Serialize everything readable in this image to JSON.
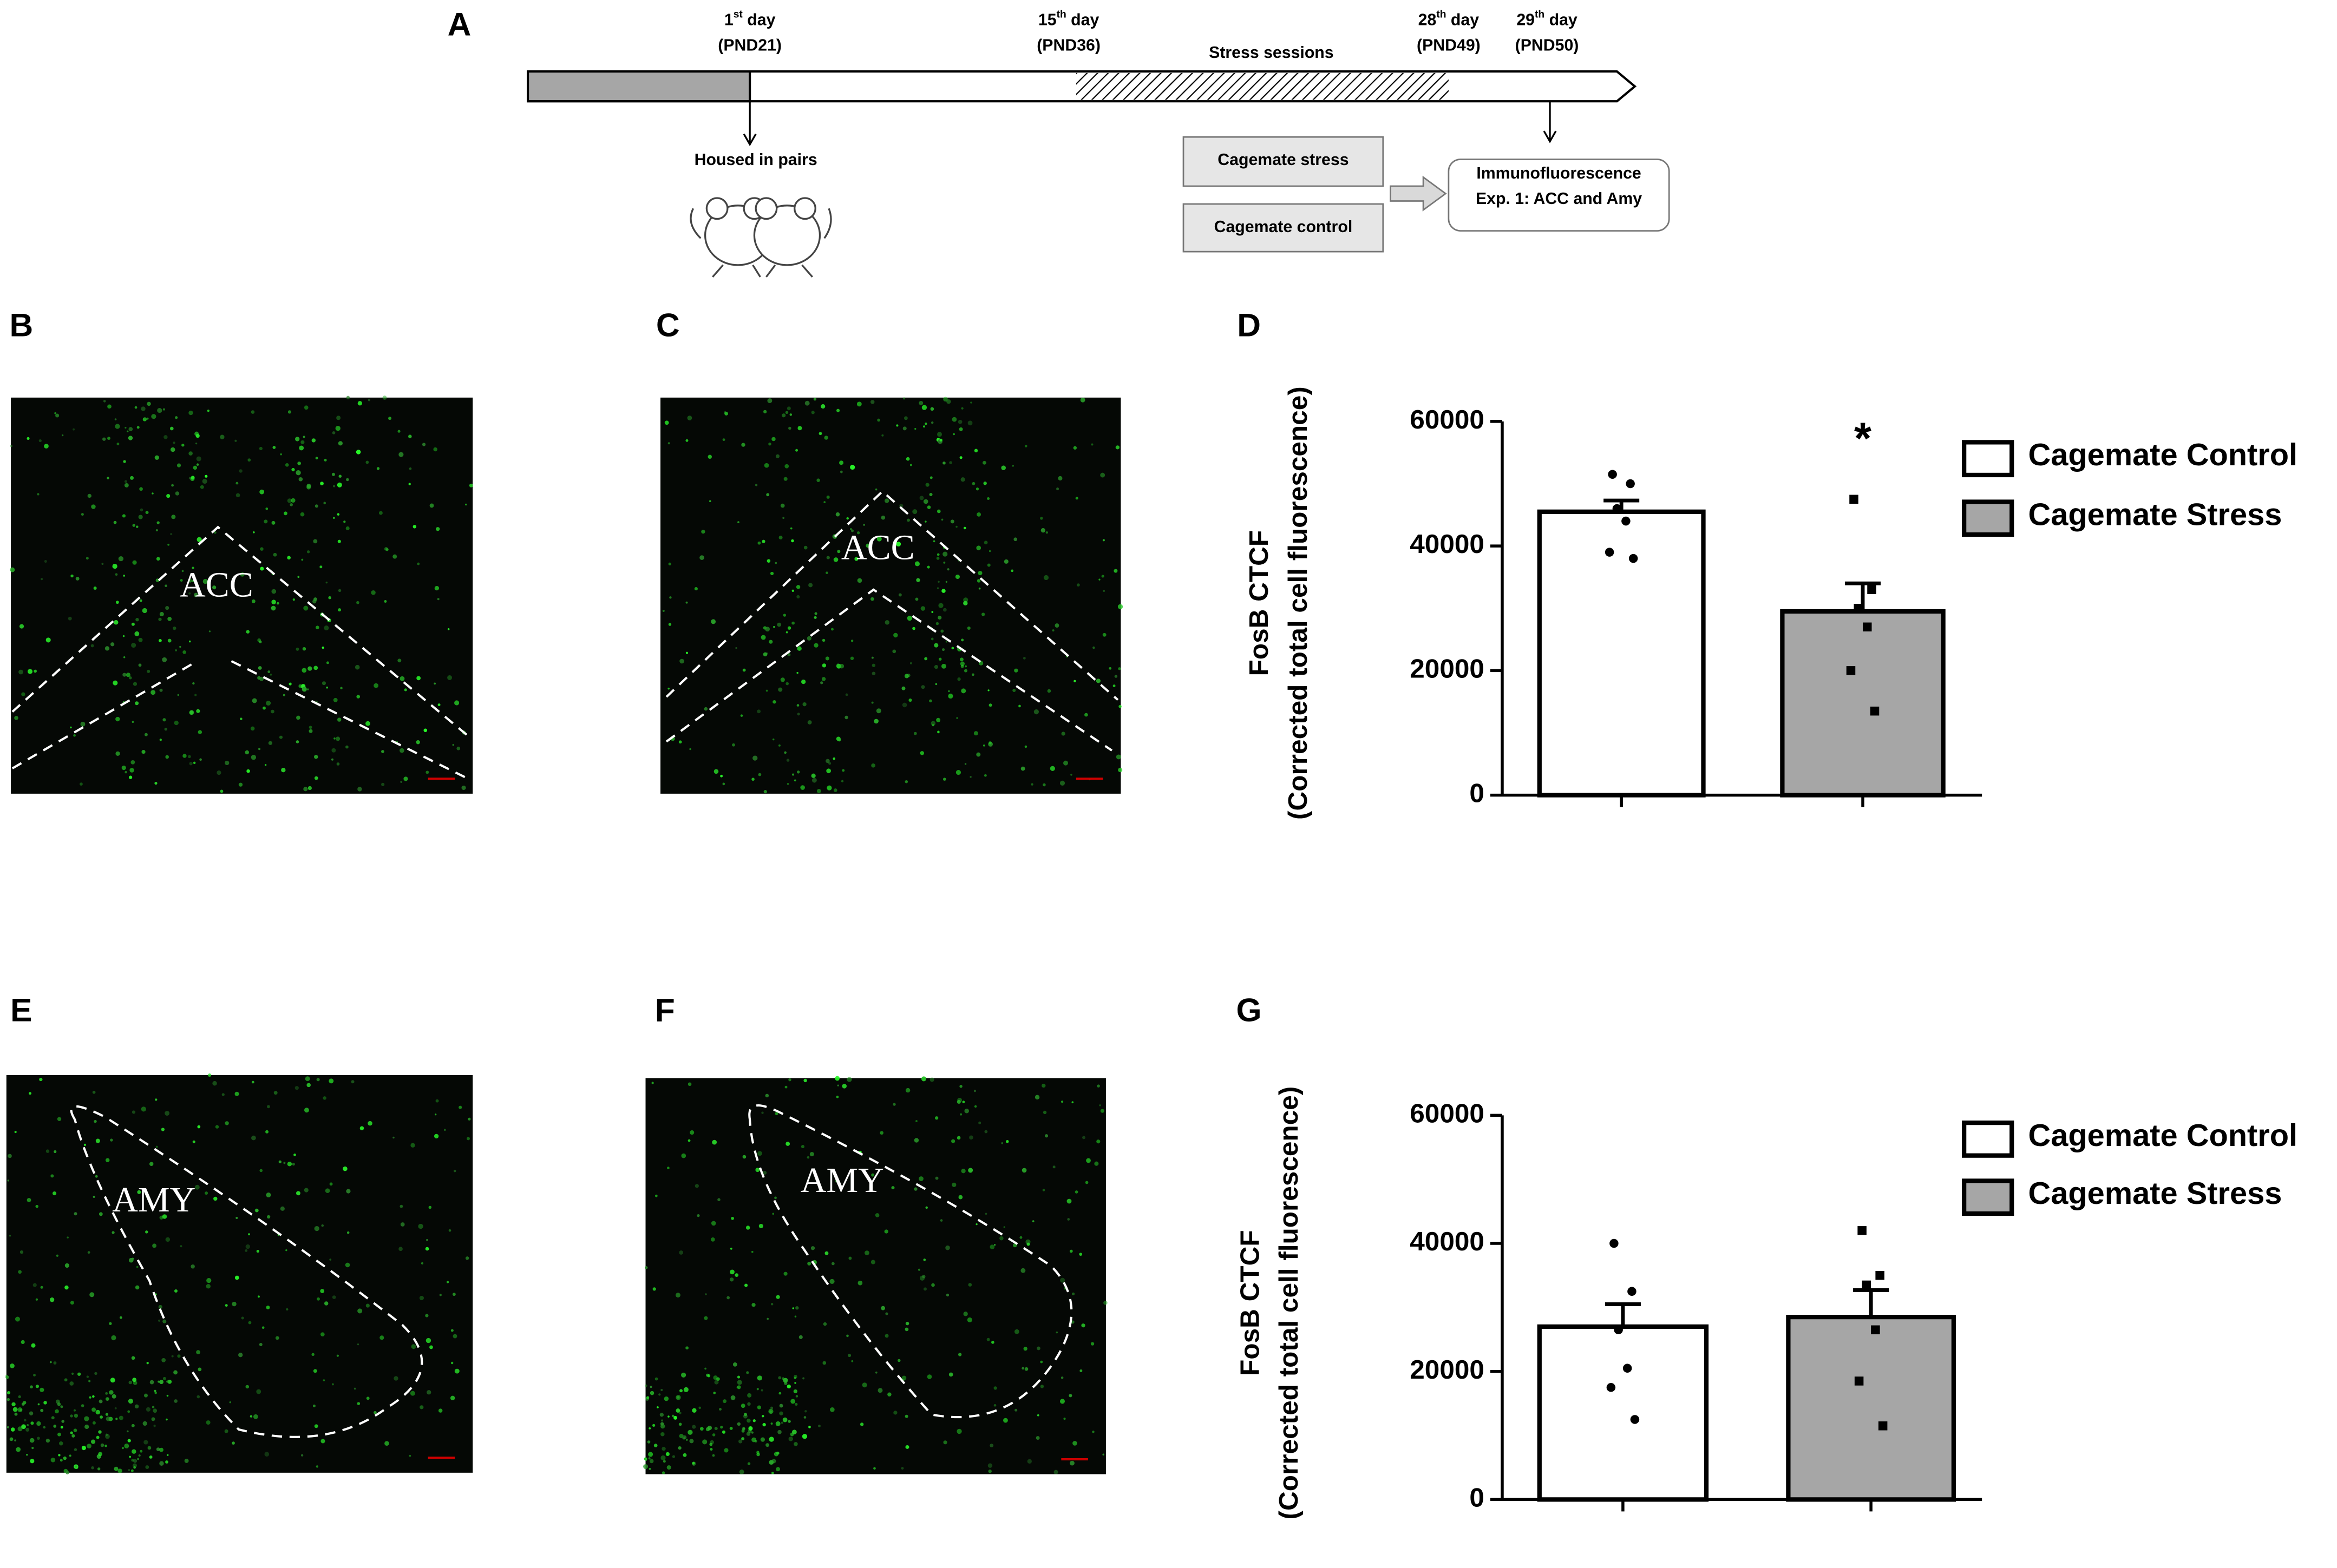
{
  "panel_labels": [
    "A",
    "B",
    "C",
    "D",
    "E",
    "F",
    "G"
  ],
  "timeline": {
    "days": [
      {
        "num": "1",
        "sup": "st",
        "word": " day",
        "pnd": "(PND21)"
      },
      {
        "num": "15",
        "sup": "th",
        "word": " day",
        "pnd": "(PND36)"
      },
      {
        "num": "28",
        "sup": "th",
        "word": " day",
        "pnd": "(PND49)"
      },
      {
        "num": "29",
        "sup": "th",
        "word": " day",
        "pnd": "(PND50)"
      }
    ],
    "stress_sessions": "Stress sessions",
    "housed": "Housed in pairs",
    "groups": [
      "Cagemate stress",
      "Cagemate control"
    ],
    "outcome": [
      "Immunofluorescence",
      "Exp. 1:  ACC and Amy"
    ]
  },
  "images": [
    "ACC",
    "ACC",
    "AMY",
    "AMY"
  ],
  "chart_data": [
    {
      "type": "bar",
      "ylabel": [
        "FosB CTCF",
        "(Corrected total cell fluorescence)"
      ],
      "ylim": [
        0,
        60000
      ],
      "yticks": [
        0,
        20000,
        40000,
        60000
      ],
      "annotation": "*",
      "series": [
        {
          "name": "Cagemate Control",
          "color": "#ffffff",
          "values": [
            45500
          ],
          "errors": [
            1800
          ],
          "points": [
            51500,
            50000,
            46000,
            44000,
            39000,
            38000
          ]
        },
        {
          "name": "Cagemate Stress",
          "color": "#a6a6a6",
          "values": [
            29500
          ],
          "errors": [
            4500
          ],
          "points": [
            47500,
            33000,
            30000,
            27000,
            20000,
            13500
          ]
        }
      ]
    },
    {
      "type": "bar",
      "ylabel": [
        "FosB CTCF",
        "(Corrected total cell fluorescence)"
      ],
      "ylim": [
        0,
        60000
      ],
      "yticks": [
        0,
        20000,
        40000,
        60000
      ],
      "series": [
        {
          "name": "Cagemate Control",
          "color": "#ffffff",
          "values": [
            27000
          ],
          "errors": [
            3500
          ],
          "points": [
            40000,
            32500,
            26500,
            20500,
            17500,
            12500
          ]
        },
        {
          "name": "Cagemate Stress",
          "color": "#a6a6a6",
          "values": [
            28500
          ],
          "errors": [
            4200
          ],
          "points": [
            42000,
            35000,
            33500,
            26500,
            18500,
            11500
          ]
        }
      ]
    }
  ]
}
